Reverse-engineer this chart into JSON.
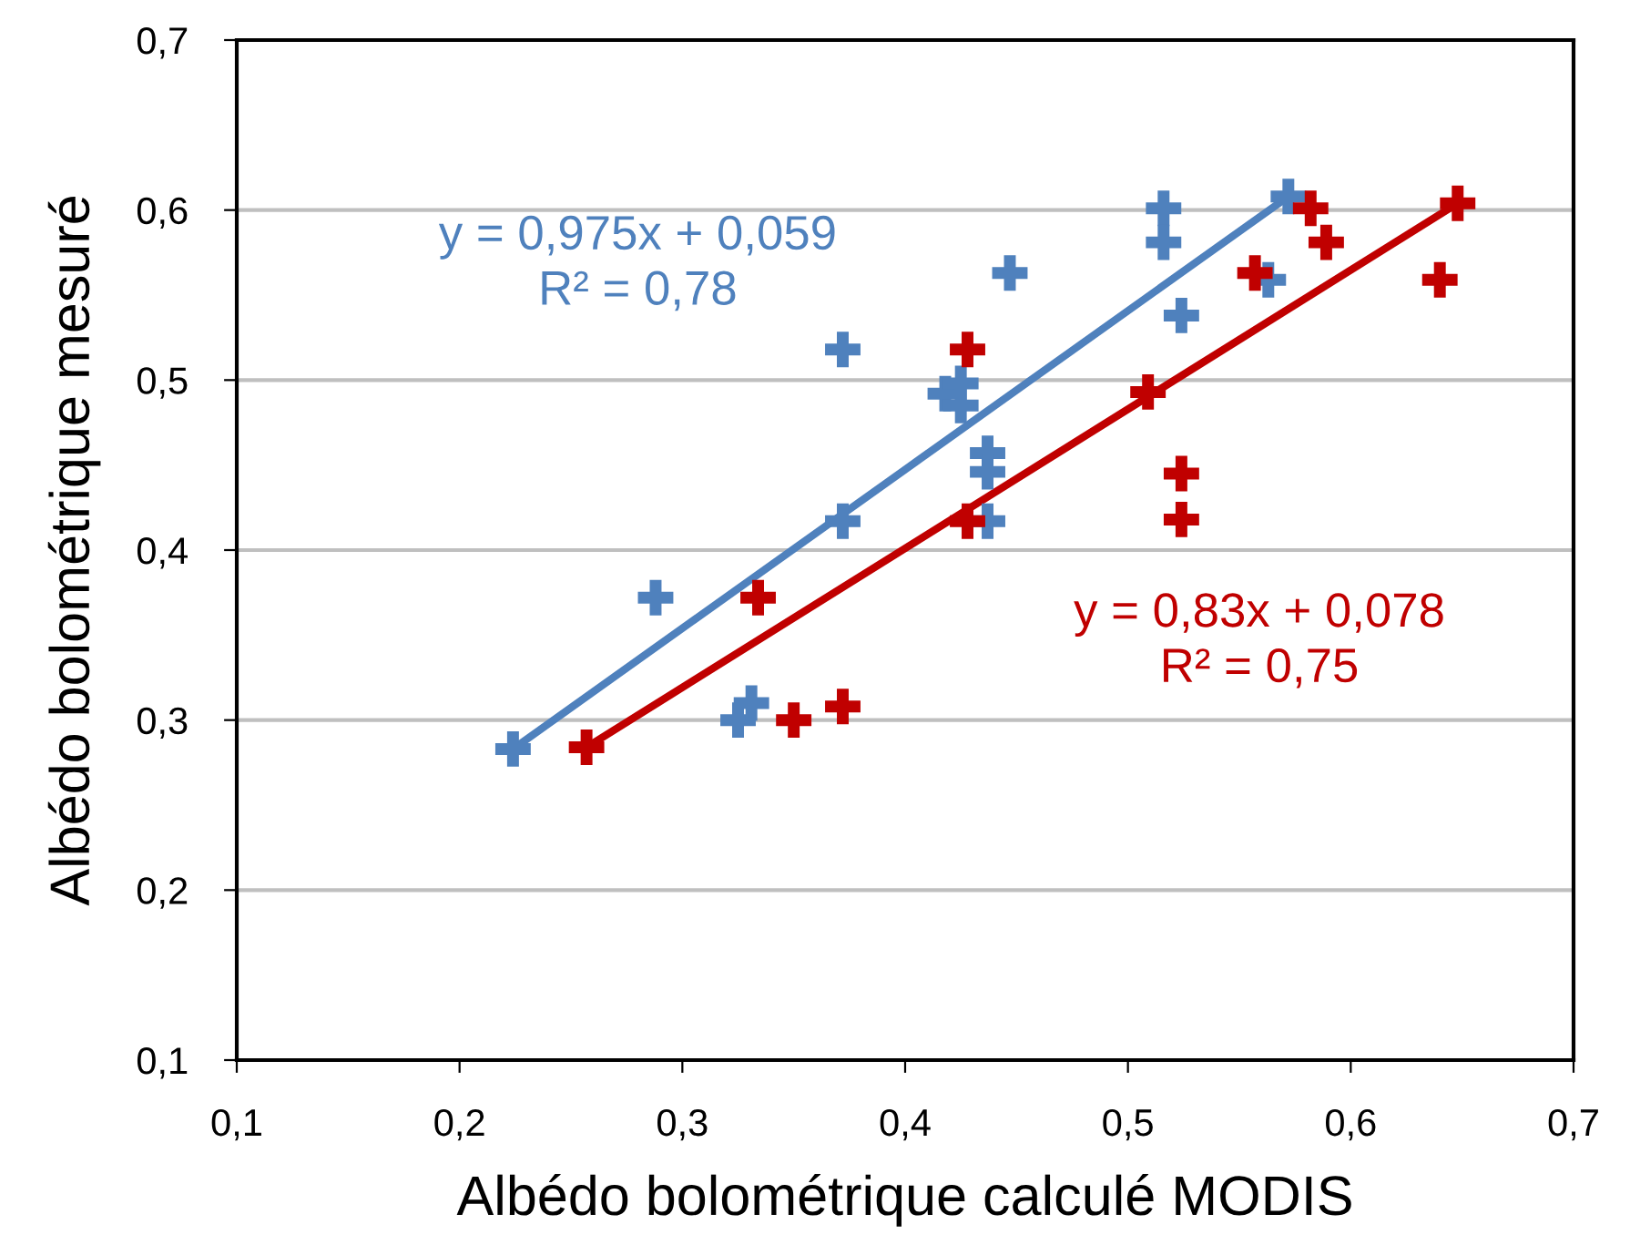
{
  "chart_data": {
    "type": "scatter",
    "xlabel": "Albédo bolométrique calculé MODIS",
    "ylabel": "Albédo bolométrique mesuré",
    "xlim": [
      0.1,
      0.7
    ],
    "ylim": [
      0.1,
      0.7
    ],
    "xticks": [
      {
        "value": 0.1,
        "label": "0,1"
      },
      {
        "value": 0.2,
        "label": "0,2"
      },
      {
        "value": 0.3,
        "label": "0,3"
      },
      {
        "value": 0.4,
        "label": "0,4"
      },
      {
        "value": 0.5,
        "label": "0,5"
      },
      {
        "value": 0.6,
        "label": "0,6"
      },
      {
        "value": 0.7,
        "label": "0,7"
      }
    ],
    "yticks": [
      {
        "value": 0.1,
        "label": "0,1"
      },
      {
        "value": 0.2,
        "label": "0,2"
      },
      {
        "value": 0.3,
        "label": "0,3"
      },
      {
        "value": 0.4,
        "label": "0,4"
      },
      {
        "value": 0.5,
        "label": "0,5"
      },
      {
        "value": 0.6,
        "label": "0,6"
      },
      {
        "value": 0.7,
        "label": "0,7"
      }
    ],
    "grid": "y",
    "marker": "cross",
    "annotations": [
      "y = 0,975x + 0,059\nR² = 0,78",
      "y = 0,83x + 0,078\nR² = 0,75"
    ],
    "series": [
      {
        "color": "#4f81bd",
        "x": [
          0.224,
          0.288,
          0.325,
          0.331,
          0.372,
          0.372,
          0.418,
          0.425,
          0.425,
          0.437,
          0.437,
          0.437,
          0.447,
          0.516,
          0.516,
          0.524,
          0.563,
          0.572
        ],
        "values": [
          0.283,
          0.372,
          0.3,
          0.31,
          0.417,
          0.518,
          0.492,
          0.498,
          0.485,
          0.457,
          0.446,
          0.417,
          0.563,
          0.601,
          0.581,
          0.538,
          0.559,
          0.608
        ]
      },
      {
        "color": "#c00000",
        "x": [
          0.257,
          0.334,
          0.35,
          0.372,
          0.428,
          0.428,
          0.509,
          0.524,
          0.524,
          0.557,
          0.582,
          0.589,
          0.64,
          0.648
        ],
        "values": [
          0.284,
          0.372,
          0.3,
          0.308,
          0.518,
          0.417,
          0.493,
          0.445,
          0.418,
          0.563,
          0.601,
          0.581,
          0.559,
          0.604
        ]
      },
      {
        "type": "line",
        "marker": "none",
        "color": "#4f81bd",
        "x": [
          0.224,
          0.572
        ],
        "values": [
          0.283,
          0.608
        ]
      },
      {
        "type": "line",
        "marker": "none",
        "color": "#c00000",
        "x": [
          0.257,
          0.648
        ],
        "values": [
          0.284,
          0.604
        ]
      }
    ]
  }
}
